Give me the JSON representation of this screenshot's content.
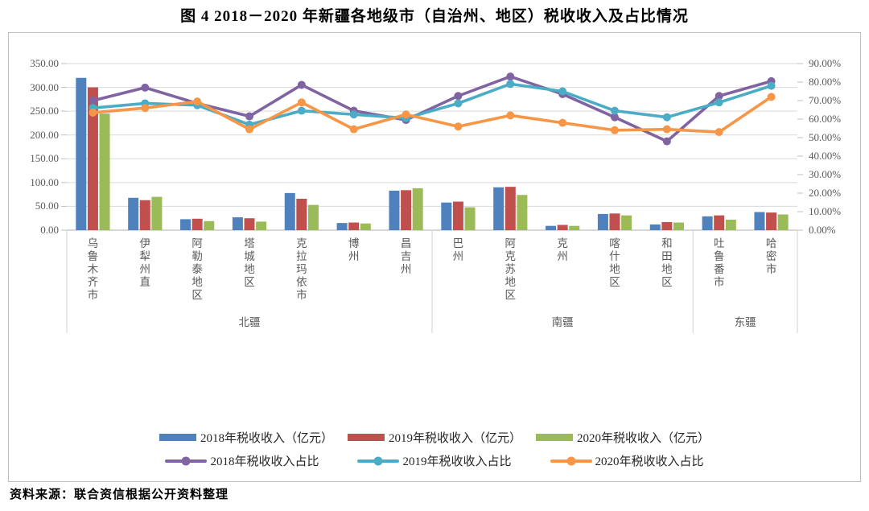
{
  "title": "图 4 2018－2020 年新疆各地级市（自治州、地区）税收收入及占比情况",
  "source": "资料来源：联合资信根据公开资料整理",
  "colors": {
    "bar2018": "#4F81BD",
    "bar2019": "#C0504D",
    "bar2020": "#9BBB59",
    "line2018": "#8064A2",
    "line2019": "#4BACC6",
    "line2020": "#F79646",
    "gridline": "#D9D9D9",
    "axisline": "#BFBFBF",
    "axistext": "#595959"
  },
  "chart_data": {
    "type": "bar+line-combo",
    "categories": [
      "乌鲁木齐市",
      "伊犁州直",
      "阿勒泰地区",
      "塔城地区",
      "克拉玛依市",
      "博州",
      "昌吉州",
      "巴州",
      "阿克苏地区",
      "克州",
      "喀什地区",
      "和田地区",
      "吐鲁番市",
      "哈密市"
    ],
    "category_groups": [
      {
        "label": "北疆",
        "span": 7
      },
      {
        "label": "南疆",
        "span": 5
      },
      {
        "label": "东疆",
        "span": 2
      }
    ],
    "left_axis": {
      "min": 0,
      "max": 350,
      "step": 50,
      "tick_labels": [
        "350.00",
        "300.00",
        "250.00",
        "200.00",
        "150.00",
        "100.00",
        "50.00",
        "0.00"
      ]
    },
    "right_axis": {
      "min": 0,
      "max": 90,
      "step": 10,
      "tick_labels": [
        "90.00%",
        "80.00%",
        "70.00%",
        "60.00%",
        "50.00%",
        "40.00%",
        "30.00%",
        "20.00%",
        "10.00%",
        "0.00%"
      ]
    },
    "bar_series": [
      {
        "name": "2018年税收收入（亿元）",
        "color": "#4F81BD",
        "values": [
          320,
          68,
          23,
          27,
          78,
          15,
          83,
          58,
          90,
          9,
          34,
          12,
          29,
          38
        ]
      },
      {
        "name": "2019年税收收入（亿元）",
        "color": "#C0504D",
        "values": [
          300,
          63,
          24,
          25,
          66,
          16,
          84,
          60,
          91,
          11,
          35,
          17,
          31,
          37
        ]
      },
      {
        "name": "2020年税收收入（亿元）",
        "color": "#9BBB59",
        "values": [
          245,
          70,
          19,
          18,
          53,
          14,
          88,
          48,
          74,
          9,
          31,
          16,
          22,
          33
        ]
      }
    ],
    "line_series": [
      {
        "name": "2018年税收收入占比",
        "color": "#8064A2",
        "values": [
          70,
          77,
          68.5,
          61.5,
          78.5,
          64.5,
          59.5,
          72.5,
          83,
          73.5,
          61,
          48,
          72.5,
          80.5
        ]
      },
      {
        "name": "2019年税收收入占比",
        "color": "#4BACC6",
        "values": [
          66,
          68.5,
          67.5,
          57,
          64.5,
          62.5,
          60.5,
          68.5,
          79,
          75,
          64.5,
          61,
          69,
          78
        ]
      },
      {
        "name": "2020年税收收入占比",
        "color": "#F79646",
        "values": [
          63.5,
          66,
          69.5,
          54.5,
          69,
          54.5,
          62.5,
          56,
          62,
          58,
          54,
          54.5,
          53,
          72
        ]
      }
    ],
    "legend_position": "bottom",
    "grid": true
  }
}
